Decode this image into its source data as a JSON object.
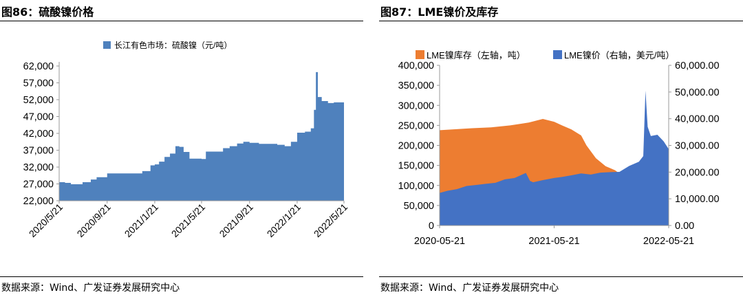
{
  "charts": [
    {
      "figure_title": "图86：硫酸镍价格",
      "source": "数据来源：Wind、广发证券发展研究中心"
    },
    {
      "figure_title": "图87：LME镍价及库存",
      "source": "数据来源：Wind、广发证券发展研究中心"
    }
  ],
  "colors": {
    "blue": "#4f81bd",
    "orange": "#ed7d31",
    "blue2": "#4472c4"
  },
  "chart_data": [
    {
      "type": "area",
      "legend_position": "top-center",
      "grid": false,
      "y_ticks": [
        "62,000",
        "57,000",
        "52,000",
        "47,000",
        "42,000",
        "37,000",
        "32,000",
        "27,000",
        "22,000"
      ],
      "x_ticks": [
        "2020/5/21",
        "2020/9/21",
        "2021/1/21",
        "2021/5/21",
        "2021/9/21",
        "2022/1/21",
        "2022/5/21"
      ],
      "ylim": [
        22000,
        62000
      ],
      "series": [
        {
          "name": "长江有色市场：硫酸镍（元/吨）",
          "x": [
            "2020/5/21",
            "2020/6/5",
            "2020/6/20",
            "2020/7/5",
            "2020/7/20",
            "2020/8/10",
            "2020/8/25",
            "2020/9/21",
            "2020/10/15",
            "2020/11/10",
            "2020/12/1",
            "2020/12/20",
            "2021/1/10",
            "2021/1/21",
            "2021/2/1",
            "2021/2/15",
            "2021/3/1",
            "2021/3/15",
            "2021/3/25",
            "2021/4/5",
            "2021/4/20",
            "2021/5/21",
            "2021/6/1",
            "2021/6/30",
            "2021/7/15",
            "2021/8/1",
            "2021/8/20",
            "2021/9/5",
            "2021/9/21",
            "2021/10/15",
            "2021/11/10",
            "2021/12/1",
            "2021/12/20",
            "2022/1/5",
            "2022/1/21",
            "2022/2/10",
            "2022/2/25",
            "2022/3/5",
            "2022/3/10",
            "2022/3/15",
            "2022/3/25",
            "2022/4/10",
            "2022/4/25",
            "2022/5/10",
            "2022/5/21"
          ],
          "values": [
            27500,
            27300,
            26900,
            26900,
            27500,
            28300,
            29000,
            30100,
            30100,
            30100,
            30100,
            30800,
            32500,
            32800,
            33600,
            35000,
            36000,
            38200,
            38000,
            36500,
            34500,
            34400,
            36600,
            36600,
            37600,
            38200,
            39000,
            39500,
            39200,
            38900,
            38900,
            38600,
            38200,
            39500,
            42200,
            42500,
            43500,
            49000,
            60200,
            52800,
            51600,
            51000,
            51200,
            51200,
            49400
          ]
        }
      ]
    },
    {
      "type": "area",
      "legend_position": "top",
      "grid": false,
      "left_axis": {
        "ticks": [
          "400,000",
          "350,000",
          "300,000",
          "250,000",
          "200,000",
          "150,000",
          "100,000",
          "50,000",
          "0"
        ],
        "ylim": [
          0,
          400000
        ]
      },
      "right_axis": {
        "ticks": [
          "60,000.00",
          "50,000.00",
          "40,000.00",
          "30,000.00",
          "20,000.00",
          "10,000.00",
          "0.00"
        ],
        "ylim": [
          0,
          60000
        ]
      },
      "x_ticks": [
        "2020-05-21",
        "2021-05-21",
        "2022-05-21"
      ],
      "series": [
        {
          "name": "LME镍库存（左轴，吨）",
          "axis": "left",
          "x": [
            "2020-05-21",
            "2020-07-01",
            "2020-09-01",
            "2020-11-01",
            "2021-01-01",
            "2021-03-01",
            "2021-04-15",
            "2021-05-21",
            "2021-06-15",
            "2021-07-15",
            "2021-08-15",
            "2021-09-01",
            "2021-10-01",
            "2021-11-01",
            "2021-12-01",
            "2022-01-01",
            "2022-02-01",
            "2022-03-01",
            "2022-04-01",
            "2022-05-21"
          ],
          "values": [
            238000,
            240000,
            243000,
            245000,
            250000,
            257000,
            266000,
            259000,
            250000,
            240000,
            225000,
            200000,
            168000,
            148000,
            138000,
            120000,
            90000,
            75000,
            73000,
            71000
          ]
        },
        {
          "name": "LME镍价（右轴，美元/吨）",
          "axis": "right",
          "x": [
            "2020-05-21",
            "2020-06-15",
            "2020-07-15",
            "2020-08-15",
            "2020-09-15",
            "2020-10-15",
            "2020-11-15",
            "2020-12-15",
            "2021-01-15",
            "2021-02-20",
            "2021-03-05",
            "2021-03-15",
            "2021-04-15",
            "2021-05-21",
            "2021-06-15",
            "2021-07-15",
            "2021-08-15",
            "2021-09-15",
            "2021-10-15",
            "2021-11-15",
            "2021-12-15",
            "2022-01-15",
            "2022-02-15",
            "2022-03-01",
            "2022-03-08",
            "2022-03-15",
            "2022-03-25",
            "2022-04-15",
            "2022-05-05",
            "2022-05-21"
          ],
          "values": [
            12200,
            13000,
            13600,
            14800,
            15200,
            15600,
            16000,
            17300,
            17800,
            19700,
            16700,
            16200,
            17000,
            17800,
            18200,
            18800,
            19500,
            19100,
            19800,
            20000,
            20100,
            22300,
            23900,
            26000,
            50500,
            37000,
            33500,
            34000,
            31500,
            28600
          ]
        }
      ]
    }
  ]
}
